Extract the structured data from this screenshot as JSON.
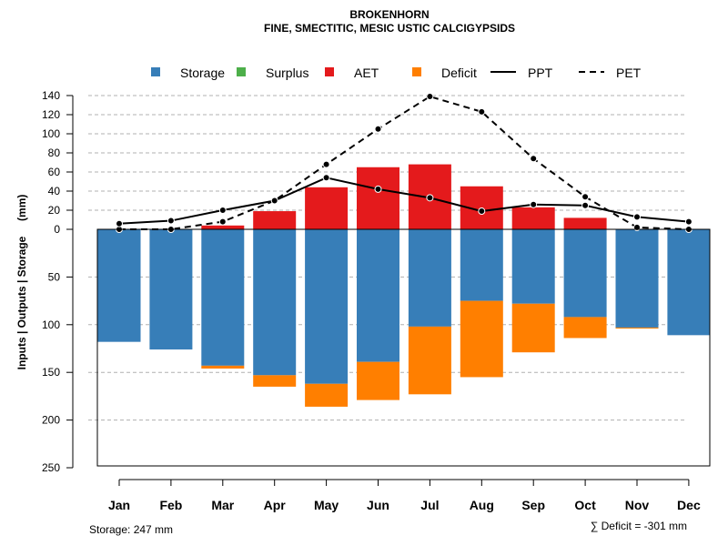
{
  "chart_data": {
    "type": "bar+line",
    "title": "BROKENHORN",
    "subtitle": "FINE, SMECTITIC, MESIC USTIC CALCIGYPSIDS",
    "ylabel": "Inputs | Outputs | Storage     (mm)",
    "categories": [
      "Jan",
      "Feb",
      "Mar",
      "Apr",
      "May",
      "Jun",
      "Jul",
      "Aug",
      "Sep",
      "Oct",
      "Nov",
      "Dec"
    ],
    "yticks_up": [
      "0",
      "20",
      "40",
      "60",
      "80",
      "100",
      "120",
      "140"
    ],
    "yticks_down": [
      "50",
      "100",
      "150",
      "200",
      "250"
    ],
    "ylim_up": [
      0,
      140
    ],
    "ylim_down": [
      0,
      250
    ],
    "legend": [
      {
        "label": "Storage",
        "kind": "box",
        "color": "#377EB8"
      },
      {
        "label": "Surplus",
        "kind": "box",
        "color": "#4DAF4A"
      },
      {
        "label": "AET",
        "kind": "box",
        "color": "#E41A1C"
      },
      {
        "label": "Deficit",
        "kind": "box",
        "color": "#FF7F00"
      },
      {
        "label": "PPT",
        "kind": "solid",
        "color": "#000000"
      },
      {
        "label": "PET",
        "kind": "dashed",
        "color": "#000000"
      }
    ],
    "series": [
      {
        "name": "Storage",
        "values": [
          118,
          126,
          143,
          153,
          162,
          139,
          102,
          75,
          78,
          92,
          103,
          111
        ]
      },
      {
        "name": "Surplus",
        "values": [
          0,
          0,
          0,
          0,
          0,
          0,
          0,
          0,
          0,
          0,
          0,
          0
        ]
      },
      {
        "name": "AET",
        "values": [
          0,
          0,
          4,
          19,
          44,
          65,
          68,
          45,
          23,
          12,
          0,
          0
        ]
      },
      {
        "name": "Deficit",
        "values": [
          0,
          0,
          3,
          12,
          24,
          40,
          71,
          80,
          51,
          22,
          1,
          0
        ]
      },
      {
        "name": "PPT",
        "values": [
          6,
          9,
          20,
          30,
          54,
          42,
          33,
          19,
          26,
          25,
          13,
          8
        ]
      },
      {
        "name": "PET",
        "values": [
          0,
          0,
          8,
          30,
          68,
          105,
          139,
          123,
          74,
          34,
          2,
          0
        ]
      }
    ],
    "footer_left": "Storage: 247 mm",
    "footer_right": "∑ Deficit = -301 mm"
  }
}
